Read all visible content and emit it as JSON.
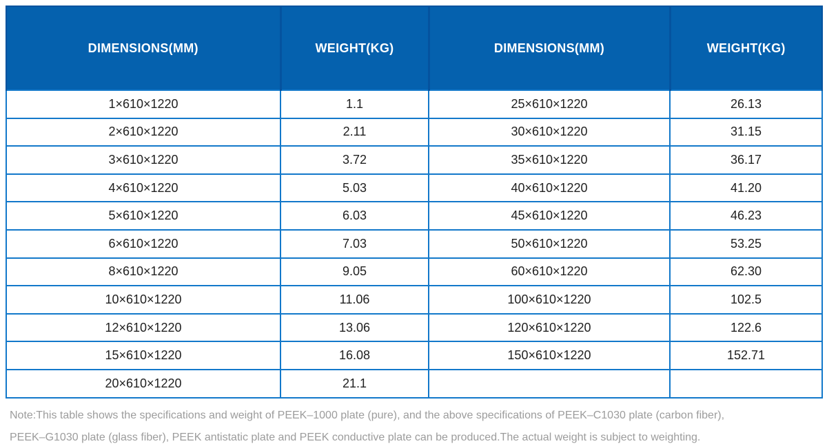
{
  "colors": {
    "header_background": "#0561ae",
    "header_divider": "#05539f",
    "grid_border": "#1278ca",
    "header_text": "#ffffff",
    "body_text": "#212121",
    "note_text": "#9c9c9c"
  },
  "table": {
    "headers": [
      {
        "label": "DIMENSIONS(MM)"
      },
      {
        "label": "WEIGHT(KG)"
      },
      {
        "label": "DIMENSIONS(MM)"
      },
      {
        "label": "WEIGHT(KG)"
      }
    ],
    "rows": [
      [
        "1×610×1220",
        "1.1",
        "25×610×1220",
        "26.13"
      ],
      [
        "2×610×1220",
        "2.11",
        "30×610×1220",
        "31.15"
      ],
      [
        "3×610×1220",
        "3.72",
        "35×610×1220",
        "36.17"
      ],
      [
        "4×610×1220",
        "5.03",
        "40×610×1220",
        "41.20"
      ],
      [
        "5×610×1220",
        "6.03",
        "45×610×1220",
        "46.23"
      ],
      [
        "6×610×1220",
        "7.03",
        "50×610×1220",
        "53.25"
      ],
      [
        "8×610×1220",
        "9.05",
        "60×610×1220",
        "62.30"
      ],
      [
        "10×610×1220",
        "11.06",
        "100×610×1220",
        "102.5"
      ],
      [
        "12×610×1220",
        "13.06",
        "120×610×1220",
        "122.6"
      ],
      [
        "15×610×1220",
        "16.08",
        "150×610×1220",
        "152.71"
      ],
      [
        "20×610×1220",
        "21.1",
        "",
        ""
      ]
    ]
  },
  "note": {
    "line1": "Note:This table shows the specifications and weight of PEEK–1000 plate (pure), and the above specifications of PEEK–C1030 plate (carbon fiber),",
    "line2": "PEEK–G1030 plate (glass fiber), PEEK antistatic plate and PEEK conductive plate can be produced.The actual weight is subject to weighting."
  }
}
